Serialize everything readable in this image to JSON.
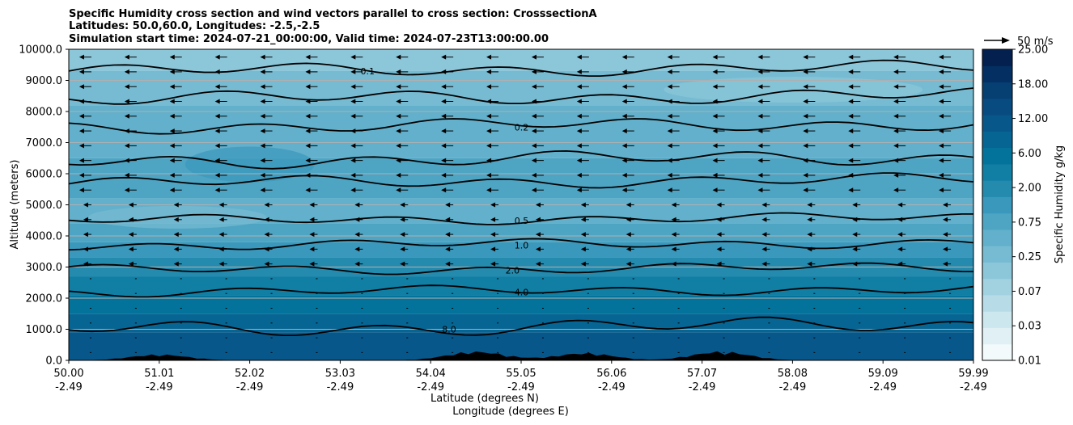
{
  "chart_data": {
    "type": "contour",
    "title_lines": [
      "Specific Humidity cross section and wind vectors parallel to cross section: CrosssectionA",
      "Latitudes: 50.0,60.0, Longitudes: -2.5,-2.5",
      "Simulation start time: 2024-07-21_00:00:00, Valid time: 2024-07-23T13:00:00.00"
    ],
    "xlabel_lat": "Latitude (degrees N)",
    "xlabel_lon": "Longitude (degrees E)",
    "ylabel": "Altitude (meters)",
    "xlim": [
      50.0,
      59.99
    ],
    "ylim": [
      0,
      10000
    ],
    "x_ticks_lat": [
      "50.00",
      "51.01",
      "52.02",
      "53.03",
      "54.04",
      "55.05",
      "56.06",
      "57.07",
      "58.08",
      "59.09",
      "59.99"
    ],
    "x_ticks_lon": [
      "-2.49",
      "-2.49",
      "-2.49",
      "-2.49",
      "-2.49",
      "-2.49",
      "-2.49",
      "-2.49",
      "-2.49",
      "-2.49",
      "-2.49"
    ],
    "y_ticks": [
      "0.0",
      "1000.0",
      "2000.0",
      "3000.0",
      "4000.0",
      "5000.0",
      "6000.0",
      "7000.0",
      "8000.0",
      "9000.0",
      "10000.0"
    ],
    "y_tick_values": [
      0,
      1000,
      2000,
      3000,
      4000,
      5000,
      6000,
      7000,
      8000,
      9000,
      10000
    ],
    "grid": "horizontal",
    "colorbar": {
      "label": "Specific Humidity g/kg",
      "tick_labels": [
        "0.01",
        "0.03",
        "0.07",
        "0.25",
        "0.75",
        "2.00",
        "6.00",
        "12.00",
        "18.00",
        "25.00"
      ],
      "levels": [
        0.01,
        0.02,
        0.03,
        0.05,
        0.07,
        0.1,
        0.25,
        0.5,
        0.75,
        1.0,
        2.0,
        4.0,
        6.0,
        9.0,
        12.0,
        15.0,
        18.0,
        21.0,
        25.0
      ],
      "colors": [
        "#f3fafc",
        "#e0f0f4",
        "#cde7ee",
        "#b7dce7",
        "#a2d1e0",
        "#8cc6d9",
        "#77bbd2",
        "#62b0cb",
        "#4ea4c3",
        "#3a98bc",
        "#248aae",
        "#117ea4",
        "#04739b",
        "#066593",
        "#07578a",
        "#084b80",
        "#063f72",
        "#042f62",
        "#03204f"
      ]
    },
    "quiver_key": {
      "label": "50 m/s",
      "speed": 50
    },
    "contour_levels": [
      {
        "label": "0.1",
        "alt": 9300
      },
      {
        "label": "0.2",
        "alt": 7500
      },
      {
        "label": "0.5",
        "alt": 4500
      },
      {
        "label": "1.0",
        "alt": 3700
      },
      {
        "label": "2.0",
        "alt": 2900
      },
      {
        "label": "4.0",
        "alt": 2200
      },
      {
        "label": "8.0",
        "alt": 1000
      }
    ],
    "terrain_peaks": [
      {
        "lat": 51.0,
        "alt": 200
      },
      {
        "lat": 54.5,
        "alt": 300
      },
      {
        "lat": 55.7,
        "alt": 250
      },
      {
        "lat": 57.2,
        "alt": 300
      }
    ]
  }
}
